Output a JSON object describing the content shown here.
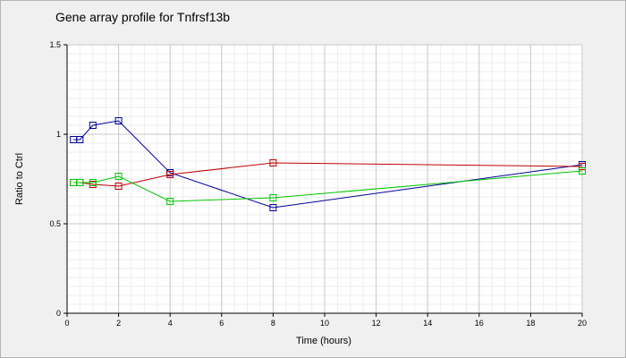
{
  "chart_data": {
    "type": "line",
    "title": "Gene array profile for Tnfrsf13b",
    "xlabel": "Time (hours)",
    "ylabel": "Ratio to Ctrl",
    "xlim": [
      0,
      20
    ],
    "ylim": [
      0,
      1.5
    ],
    "xticks": [
      0,
      2,
      4,
      6,
      8,
      10,
      12,
      14,
      16,
      18,
      20
    ],
    "yticks": [
      {
        "value": 0,
        "label": "0"
      },
      {
        "value": 0.5,
        "label": "0.5"
      },
      {
        "value": 1,
        "label": "1"
      },
      {
        "value": 1.5,
        "label": "1.5"
      }
    ],
    "grid": true,
    "legend": "none",
    "x": [
      0.25,
      0.5,
      1,
      2,
      4,
      8,
      20
    ],
    "series": [
      {
        "color": "#00009c",
        "values": [
          0.97,
          0.97,
          1.05,
          1.075,
          0.785,
          0.59,
          0.83
        ]
      },
      {
        "color": "#c00000",
        "values": [
          0.73,
          0.73,
          0.72,
          0.71,
          0.775,
          0.84,
          0.82
        ]
      },
      {
        "color": "#00c800",
        "values": [
          0.73,
          0.73,
          0.73,
          0.765,
          0.625,
          0.645,
          0.795
        ]
      }
    ]
  }
}
